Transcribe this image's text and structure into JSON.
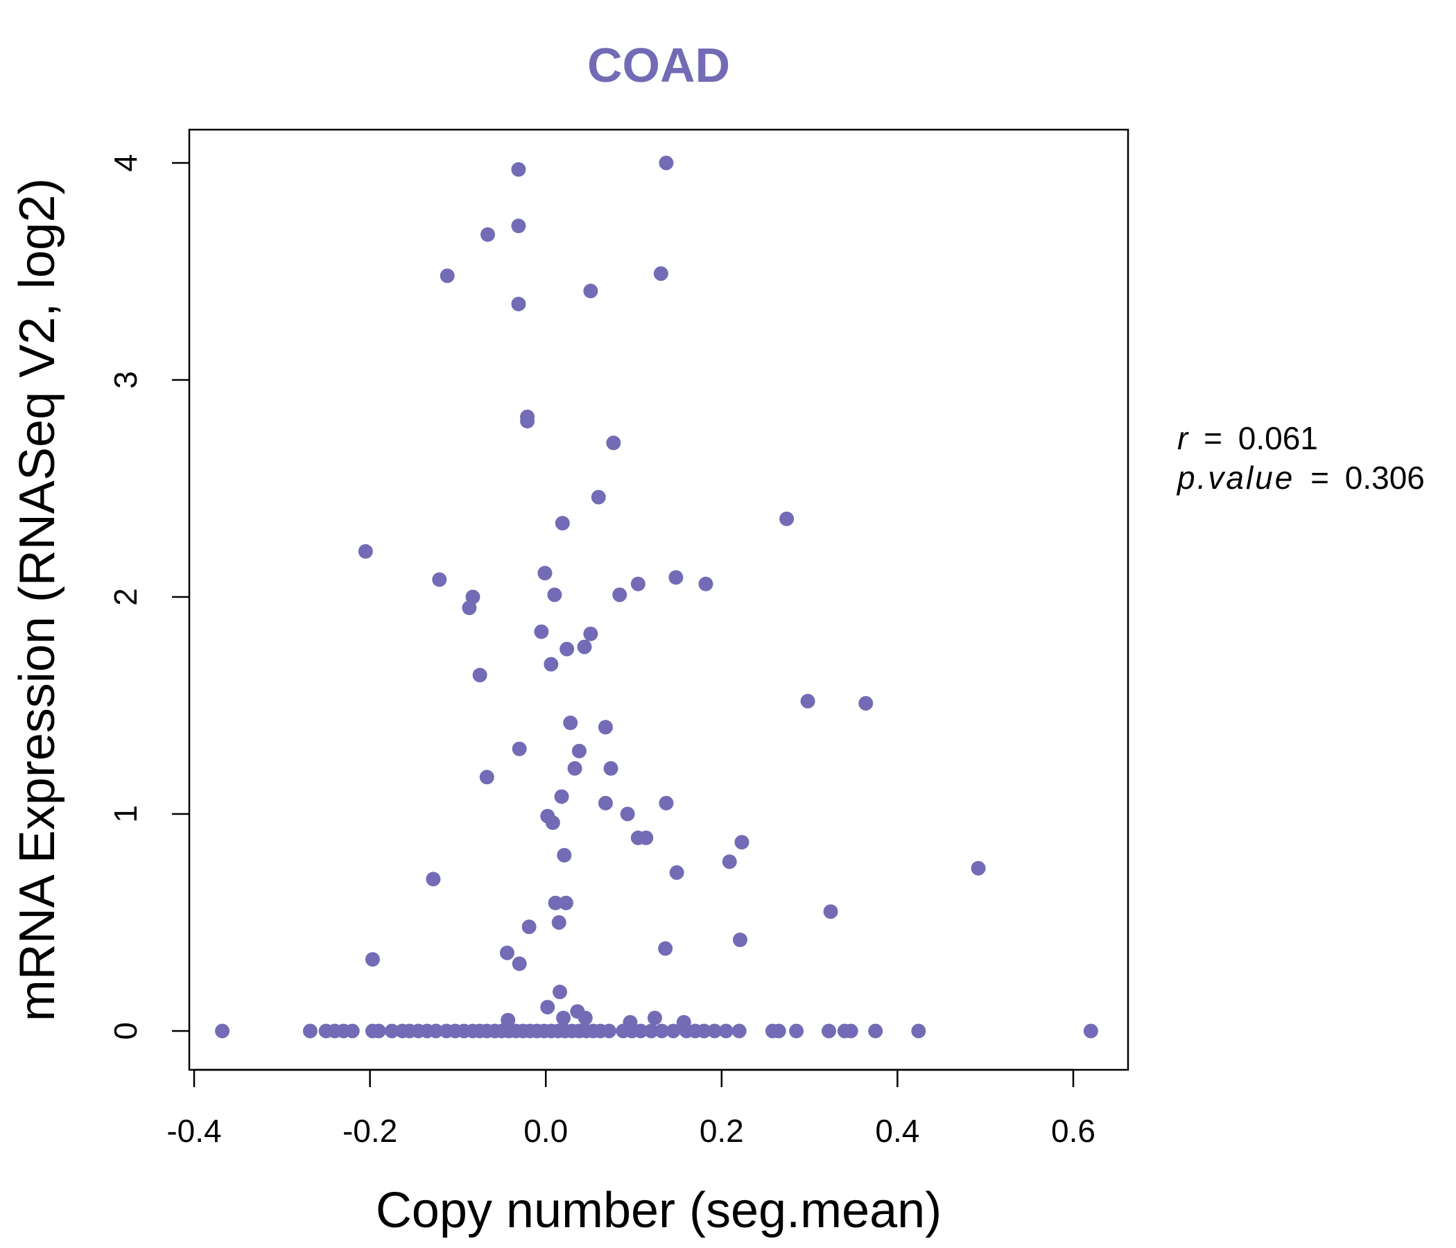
{
  "chart_data": {
    "type": "scatter",
    "title": "COAD",
    "xlabel": "Copy number (seg.mean)",
    "ylabel": "mRNA Expression (RNASeq V2, log2)",
    "xlim": [
      -0.4,
      0.65
    ],
    "ylim": [
      0,
      4
    ],
    "x_ticks": [
      -0.4,
      -0.2,
      0.0,
      0.2,
      0.4,
      0.6
    ],
    "x_tick_labels": [
      "-0.4",
      "-0.2",
      "0.0",
      "0.2",
      "0.4",
      "0.6"
    ],
    "y_ticks": [
      0,
      1,
      2,
      3,
      4
    ],
    "y_tick_labels": [
      "0",
      "1",
      "2",
      "3",
      "4"
    ],
    "grid": false,
    "point_color": "#736bb5",
    "title_color": "#736bb5",
    "stats": {
      "r_label": "r",
      "r_value": "0.061",
      "p_label": "p.value",
      "p_value": "0.306"
    },
    "series": [
      {
        "points": [
          [
            0.137,
            4.0
          ],
          [
            -0.031,
            3.97
          ],
          [
            -0.031,
            3.71
          ],
          [
            -0.066,
            3.67
          ],
          [
            -0.112,
            3.48
          ],
          [
            0.131,
            3.49
          ],
          [
            0.051,
            3.41
          ],
          [
            -0.031,
            3.35
          ],
          [
            -0.021,
            2.83
          ],
          [
            -0.021,
            2.81
          ],
          [
            0.077,
            2.71
          ],
          [
            0.06,
            2.46
          ],
          [
            0.019,
            2.34
          ],
          [
            0.274,
            2.36
          ],
          [
            -0.205,
            2.21
          ],
          [
            -0.121,
            2.08
          ],
          [
            -0.001,
            2.11
          ],
          [
            -0.083,
            2.0
          ],
          [
            0.01,
            2.01
          ],
          [
            0.084,
            2.01
          ],
          [
            0.105,
            2.06
          ],
          [
            0.148,
            2.09
          ],
          [
            0.182,
            2.06
          ],
          [
            -0.087,
            1.95
          ],
          [
            -0.005,
            1.84
          ],
          [
            0.051,
            1.83
          ],
          [
            0.024,
            1.76
          ],
          [
            0.044,
            1.77
          ],
          [
            0.006,
            1.69
          ],
          [
            -0.075,
            1.64
          ],
          [
            0.298,
            1.52
          ],
          [
            0.364,
            1.51
          ],
          [
            0.028,
            1.42
          ],
          [
            0.068,
            1.4
          ],
          [
            -0.03,
            1.3
          ],
          [
            0.038,
            1.29
          ],
          [
            0.033,
            1.21
          ],
          [
            0.074,
            1.21
          ],
          [
            -0.067,
            1.17
          ],
          [
            0.018,
            1.08
          ],
          [
            0.068,
            1.05
          ],
          [
            0.137,
            1.05
          ],
          [
            0.093,
            1.0
          ],
          [
            0.002,
            0.99
          ],
          [
            0.008,
            0.96
          ],
          [
            0.105,
            0.89
          ],
          [
            0.114,
            0.89
          ],
          [
            0.223,
            0.87
          ],
          [
            0.021,
            0.81
          ],
          [
            0.209,
            0.78
          ],
          [
            0.149,
            0.73
          ],
          [
            0.492,
            0.75
          ],
          [
            -0.128,
            0.7
          ],
          [
            0.011,
            0.59
          ],
          [
            0.023,
            0.59
          ],
          [
            0.324,
            0.55
          ],
          [
            0.015,
            0.5
          ],
          [
            -0.019,
            0.48
          ],
          [
            0.221,
            0.42
          ],
          [
            0.136,
            0.38
          ],
          [
            -0.044,
            0.36
          ],
          [
            -0.197,
            0.33
          ],
          [
            -0.03,
            0.31
          ],
          [
            0.016,
            0.18
          ],
          [
            0.002,
            0.11
          ],
          [
            0.036,
            0.09
          ],
          [
            0.045,
            0.06
          ],
          [
            0.02,
            0.06
          ],
          [
            0.124,
            0.06
          ],
          [
            -0.043,
            0.05
          ],
          [
            0.096,
            0.04
          ],
          [
            0.157,
            0.04
          ],
          [
            -0.368,
            0
          ],
          [
            -0.268,
            0
          ],
          [
            -0.25,
            0
          ],
          [
            -0.24,
            0
          ],
          [
            -0.23,
            0
          ],
          [
            -0.22,
            0
          ],
          [
            -0.197,
            0
          ],
          [
            -0.19,
            0
          ],
          [
            -0.175,
            0
          ],
          [
            -0.163,
            0
          ],
          [
            -0.155,
            0
          ],
          [
            -0.145,
            0
          ],
          [
            -0.135,
            0
          ],
          [
            -0.125,
            0
          ],
          [
            -0.113,
            0
          ],
          [
            -0.103,
            0
          ],
          [
            -0.093,
            0
          ],
          [
            -0.083,
            0
          ],
          [
            -0.075,
            0
          ],
          [
            -0.067,
            0
          ],
          [
            -0.058,
            0
          ],
          [
            -0.05,
            0
          ],
          [
            -0.042,
            0
          ],
          [
            -0.034,
            0
          ],
          [
            -0.026,
            0
          ],
          [
            -0.018,
            0
          ],
          [
            -0.01,
            0
          ],
          [
            -0.002,
            0
          ],
          [
            0.006,
            0
          ],
          [
            0.014,
            0
          ],
          [
            0.022,
            0
          ],
          [
            0.03,
            0
          ],
          [
            0.038,
            0
          ],
          [
            0.046,
            0
          ],
          [
            0.054,
            0
          ],
          [
            0.062,
            0
          ],
          [
            0.072,
            0
          ],
          [
            0.088,
            0
          ],
          [
            0.098,
            0
          ],
          [
            0.108,
            0
          ],
          [
            0.12,
            0
          ],
          [
            0.132,
            0
          ],
          [
            0.145,
            0
          ],
          [
            0.16,
            0
          ],
          [
            0.17,
            0
          ],
          [
            0.18,
            0
          ],
          [
            0.192,
            0
          ],
          [
            0.205,
            0
          ],
          [
            0.22,
            0
          ],
          [
            0.258,
            0
          ],
          [
            0.265,
            0
          ],
          [
            0.285,
            0
          ],
          [
            0.322,
            0
          ],
          [
            0.34,
            0
          ],
          [
            0.347,
            0
          ],
          [
            0.375,
            0
          ],
          [
            0.424,
            0
          ],
          [
            0.62,
            0
          ]
        ]
      }
    ]
  }
}
